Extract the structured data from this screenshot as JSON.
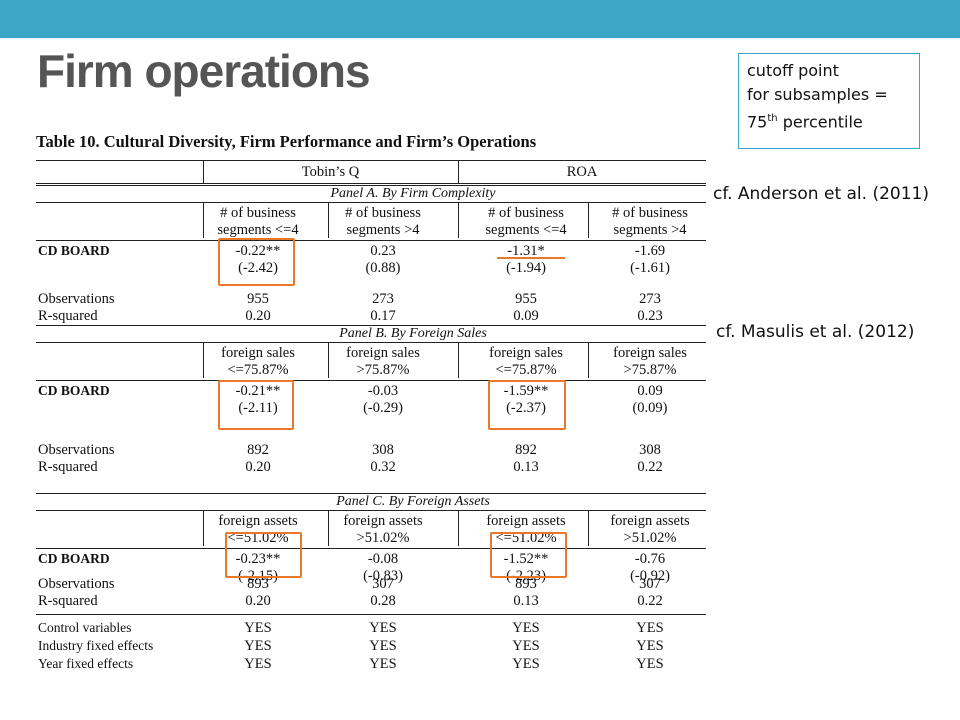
{
  "slide": {
    "title": "Firm operations",
    "note": {
      "line1": "cutoff point",
      "line2": "for subsamples =",
      "line3_pre": "75",
      "line3_sup": "th",
      "line3_post": " percentile"
    },
    "cite1": "cf. Anderson et al. (2011)",
    "cite2": "cf. Masulis et al. (2012)",
    "accent_color": "#3da6c6",
    "highlight_color": "#e8782a"
  },
  "table": {
    "title": "Table 10. Cultural Diversity, Firm Performance and Firm’s Operations",
    "dep_vars": [
      "Tobin’s Q",
      "ROA"
    ],
    "panels": [
      {
        "label": "Panel A. By Firm Complexity",
        "headers": [
          [
            "# of business",
            "segments <=4"
          ],
          [
            "# of business",
            "segments >4"
          ],
          [
            "# of business",
            "segments <=4"
          ],
          [
            "# of business",
            "segments >4"
          ]
        ],
        "cd_label": "CD BOARD",
        "coef": [
          "-0.22**",
          "0.23",
          "-1.31*",
          "-1.69"
        ],
        "tstat": [
          "(-2.42)",
          "(0.88)",
          "(-1.94)",
          "(-1.61)"
        ],
        "obs_label": "Observations",
        "obs": [
          "955",
          "273",
          "955",
          "273"
        ],
        "r2_label": "R-squared",
        "r2": [
          "0.20",
          "0.17",
          "0.09",
          "0.23"
        ]
      },
      {
        "label": "Panel B. By Foreign Sales",
        "headers": [
          [
            "foreign sales",
            "<=75.87%"
          ],
          [
            "foreign sales",
            ">75.87%"
          ],
          [
            "foreign sales",
            "<=75.87%"
          ],
          [
            "foreign sales",
            ">75.87%"
          ]
        ],
        "cd_label": "CD BOARD",
        "coef": [
          "-0.21**",
          "-0.03",
          "-1.59**",
          "0.09"
        ],
        "tstat": [
          "(-2.11)",
          "(-0.29)",
          "(-2.37)",
          "(0.09)"
        ],
        "obs_label": "Observations",
        "obs": [
          "892",
          "308",
          "892",
          "308"
        ],
        "r2_label": "R-squared",
        "r2": [
          "0.20",
          "0.32",
          "0.13",
          "0.22"
        ]
      },
      {
        "label": "Panel C. By Foreign Assets",
        "headers": [
          [
            "foreign assets",
            "<=51.02%"
          ],
          [
            "foreign assets",
            ">51.02%"
          ],
          [
            "foreign assets",
            "<=51.02%"
          ],
          [
            "foreign assets",
            ">51.02%"
          ]
        ],
        "cd_label": "CD BOARD",
        "coef": [
          "-0.23**",
          "-0.08",
          "-1.52**",
          "-0.76"
        ],
        "tstat": [
          "(-2.15)",
          "(-0.83)",
          "(-2.23)",
          "(-0.92)"
        ],
        "obs_label": "Observations",
        "obs": [
          "893",
          "307",
          "893",
          "307"
        ],
        "r2_label": "R-squared",
        "r2": [
          "0.20",
          "0.28",
          "0.13",
          "0.22"
        ]
      }
    ],
    "controls": [
      {
        "label": "Control variables",
        "values": [
          "YES",
          "YES",
          "YES",
          "YES"
        ]
      },
      {
        "label": "Industry fixed effects",
        "values": [
          "YES",
          "YES",
          "YES",
          "YES"
        ]
      },
      {
        "label": "Year fixed effects",
        "values": [
          "YES",
          "YES",
          "YES",
          "YES"
        ]
      }
    ]
  }
}
